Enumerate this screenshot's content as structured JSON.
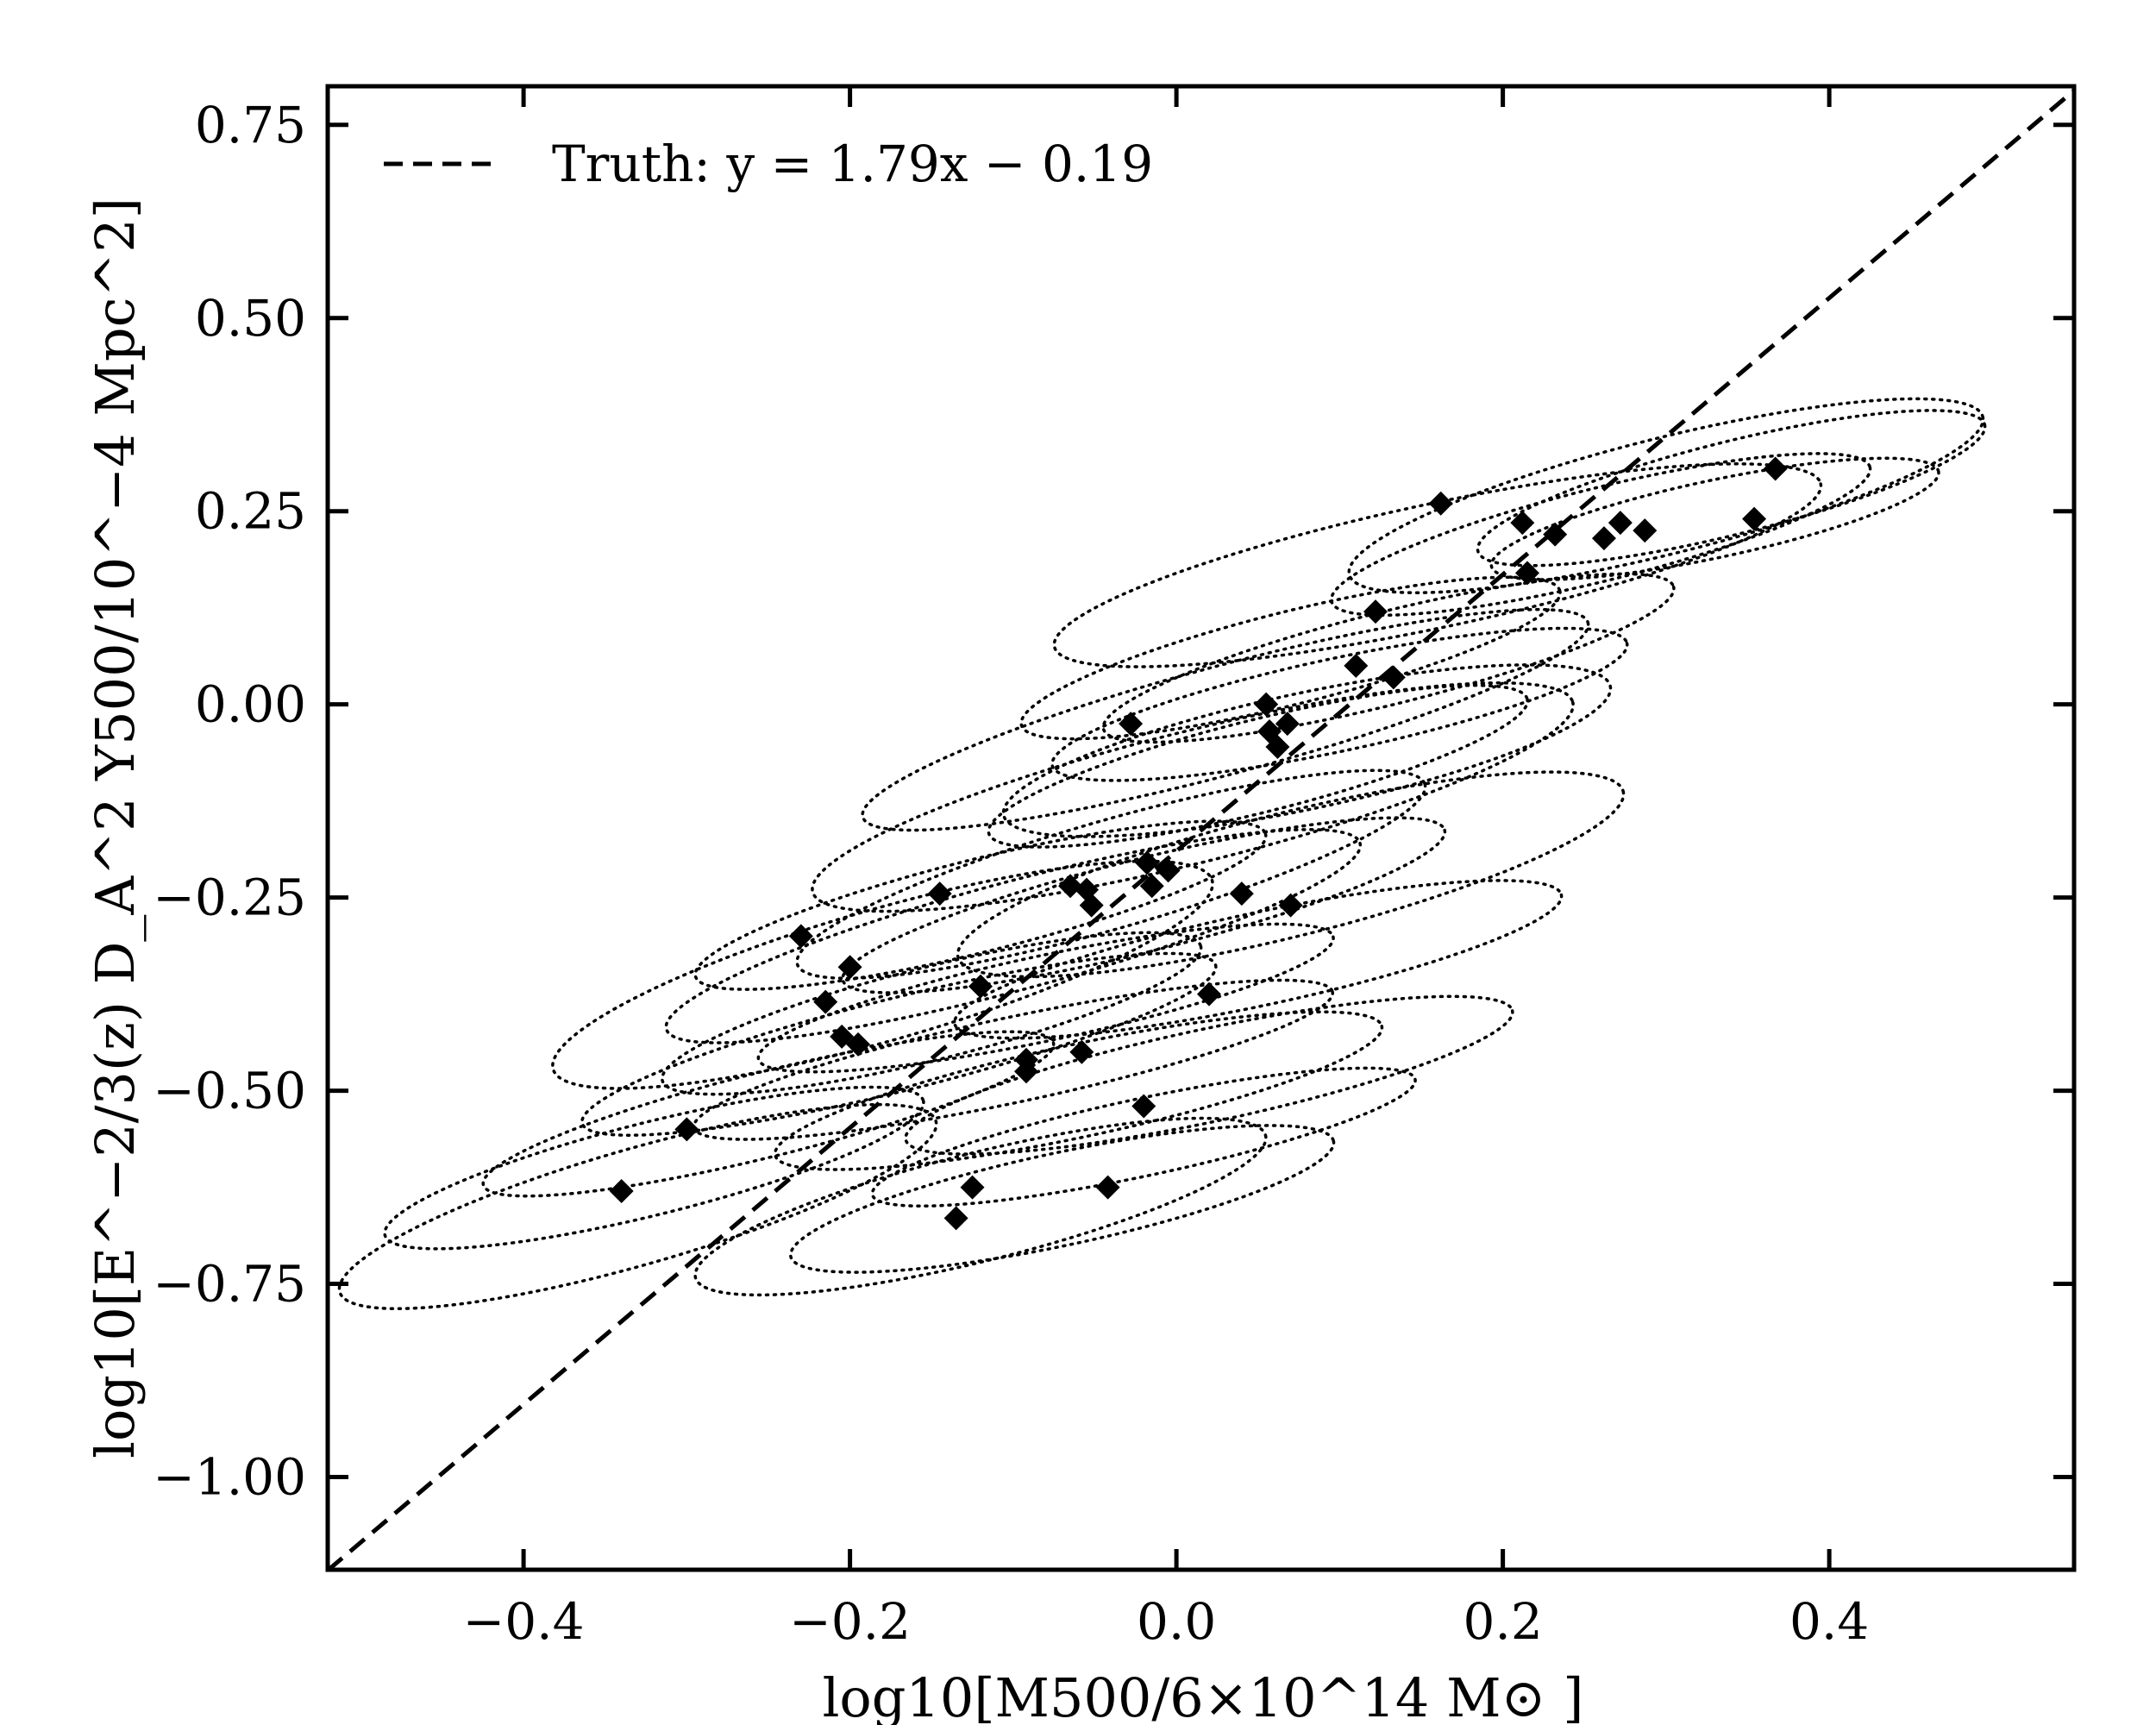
{
  "chart_data": {
    "type": "scatter",
    "xlabel": "log10[M500/6×10^14 M⊙ ]",
    "ylabel": "log10[E^−2/3(z) D_A^2 Y500/10^−4 Mpc^2]",
    "xlim": [
      -0.52,
      0.55
    ],
    "ylim": [
      -1.12,
      0.8
    ],
    "x_ticks": [
      -0.4,
      -0.2,
      0.0,
      0.2,
      0.4
    ],
    "x_tick_labels": [
      "−0.4",
      "−0.2",
      "0.0",
      "0.2",
      "0.4"
    ],
    "y_ticks": [
      0.75,
      0.5,
      0.25,
      0.0,
      -0.25,
      -0.5,
      -0.75,
      -1.0
    ],
    "y_tick_labels": [
      "0.75",
      "0.50",
      "0.25",
      "0.00",
      "−0.25",
      "−0.50",
      "−0.75",
      "−1.00"
    ],
    "legend": {
      "position": "top-left",
      "label": "Truth: y = 1.79x − 0.19"
    },
    "truth_line": {
      "slope": 1.79,
      "intercept": -0.19,
      "style": "dashed"
    },
    "grid": false,
    "colors": {
      "points": "#000000",
      "line": "#000000",
      "ellipses": "#000000"
    },
    "series": [
      {
        "marker": "diamond",
        "points": [
          [
            -0.34,
            -0.63
          ],
          [
            -0.3,
            -0.55
          ],
          [
            -0.23,
            -0.3
          ],
          [
            -0.215,
            -0.385
          ],
          [
            -0.2,
            -0.34
          ],
          [
            -0.205,
            -0.43
          ],
          [
            -0.195,
            -0.44
          ],
          [
            -0.145,
            -0.245
          ],
          [
            -0.135,
            -0.665
          ],
          [
            -0.125,
            -0.625
          ],
          [
            -0.12,
            -0.365
          ],
          [
            -0.092,
            -0.46
          ],
          [
            -0.092,
            -0.475
          ],
          [
            -0.065,
            -0.235
          ],
          [
            -0.058,
            -0.45
          ],
          [
            -0.055,
            -0.24
          ],
          [
            -0.052,
            -0.26
          ],
          [
            -0.042,
            -0.625
          ],
          [
            -0.02,
            -0.52
          ],
          [
            -0.018,
            -0.205
          ],
          [
            -0.015,
            -0.235
          ],
          [
            -0.005,
            -0.215
          ],
          [
            -0.028,
            -0.025
          ],
          [
            0.02,
            -0.375
          ],
          [
            0.04,
            -0.245
          ],
          [
            0.055,
            0.0
          ],
          [
            0.057,
            -0.035
          ],
          [
            0.062,
            -0.055
          ],
          [
            0.068,
            -0.025
          ],
          [
            0.07,
            -0.26
          ],
          [
            0.11,
            0.05
          ],
          [
            0.122,
            0.12
          ],
          [
            0.133,
            0.035
          ],
          [
            0.162,
            0.26
          ],
          [
            0.212,
            0.235
          ],
          [
            0.215,
            0.17
          ],
          [
            0.232,
            0.22
          ],
          [
            0.262,
            0.215
          ],
          [
            0.272,
            0.235
          ],
          [
            0.287,
            0.225
          ],
          [
            0.354,
            0.24
          ],
          [
            0.367,
            0.305
          ]
        ]
      }
    ],
    "ellipses": [
      {
        "cx": 0.01,
        "cy": -0.12,
        "rx": 0.24,
        "ry": 0.085,
        "angle": 14
      },
      {
        "cx": 0.08,
        "cy": -0.06,
        "rx": 0.19,
        "ry": 0.075,
        "angle": 12
      },
      {
        "cx": 0.03,
        "cy": -0.02,
        "rx": 0.23,
        "ry": 0.07,
        "angle": 15
      },
      {
        "cx": 0.1,
        "cy": 0.0,
        "rx": 0.18,
        "ry": 0.06,
        "angle": 12
      },
      {
        "cx": 0.13,
        "cy": 0.06,
        "rx": 0.18,
        "ry": 0.06,
        "angle": 14
      },
      {
        "cx": 0.16,
        "cy": 0.18,
        "rx": 0.24,
        "ry": 0.08,
        "angle": 12
      },
      {
        "cx": 0.3,
        "cy": 0.27,
        "rx": 0.2,
        "ry": 0.075,
        "angle": 14
      },
      {
        "cx": 0.26,
        "cy": 0.22,
        "rx": 0.17,
        "ry": 0.06,
        "angle": 14
      },
      {
        "cx": 0.33,
        "cy": 0.24,
        "rx": 0.14,
        "ry": 0.05,
        "angle": 12
      },
      {
        "cx": 0.34,
        "cy": 0.28,
        "rx": 0.16,
        "ry": 0.06,
        "angle": 14
      },
      {
        "cx": -0.04,
        "cy": -0.22,
        "rx": 0.2,
        "ry": 0.07,
        "angle": 16
      },
      {
        "cx": 0.07,
        "cy": -0.22,
        "rx": 0.21,
        "ry": 0.08,
        "angle": 14
      },
      {
        "cx": -0.02,
        "cy": -0.26,
        "rx": 0.19,
        "ry": 0.06,
        "angle": 14
      },
      {
        "cx": -0.1,
        "cy": -0.3,
        "rx": 0.22,
        "ry": 0.07,
        "angle": 15
      },
      {
        "cx": -0.12,
        "cy": -0.26,
        "rx": 0.18,
        "ry": 0.06,
        "angle": 14
      },
      {
        "cx": -0.18,
        "cy": -0.35,
        "rx": 0.21,
        "ry": 0.085,
        "angle": 16
      },
      {
        "cx": -0.15,
        "cy": -0.4,
        "rx": 0.17,
        "ry": 0.06,
        "angle": 14
      },
      {
        "cx": -0.17,
        "cy": -0.44,
        "rx": 0.2,
        "ry": 0.06,
        "angle": 14
      },
      {
        "cx": -0.08,
        "cy": -0.38,
        "rx": 0.18,
        "ry": 0.055,
        "angle": 12
      },
      {
        "cx": -0.1,
        "cy": -0.46,
        "rx": 0.2,
        "ry": 0.055,
        "angle": 12
      },
      {
        "cx": 0.05,
        "cy": -0.33,
        "rx": 0.19,
        "ry": 0.06,
        "angle": 12
      },
      {
        "cx": 0.02,
        "cy": -0.48,
        "rx": 0.19,
        "ry": 0.06,
        "angle": 12
      },
      {
        "cx": -0.06,
        "cy": -0.5,
        "rx": 0.19,
        "ry": 0.06,
        "angle": 12
      },
      {
        "cx": -0.02,
        "cy": -0.56,
        "rx": 0.17,
        "ry": 0.05,
        "angle": 12
      },
      {
        "cx": -0.25,
        "cy": -0.53,
        "rx": 0.18,
        "ry": 0.055,
        "angle": 14
      },
      {
        "cx": -0.32,
        "cy": -0.6,
        "rx": 0.17,
        "ry": 0.06,
        "angle": 14
      },
      {
        "cx": -0.33,
        "cy": -0.65,
        "rx": 0.19,
        "ry": 0.075,
        "angle": 16
      },
      {
        "cx": -0.12,
        "cy": -0.65,
        "rx": 0.18,
        "ry": 0.07,
        "angle": 14
      },
      {
        "cx": -0.07,
        "cy": -0.64,
        "rx": 0.17,
        "ry": 0.06,
        "angle": 12
      },
      {
        "cx": 0.07,
        "cy": 0.06,
        "rx": 0.17,
        "ry": 0.06,
        "angle": 14
      },
      {
        "cx": 0.05,
        "cy": -0.08,
        "rx": 0.17,
        "ry": 0.06,
        "angle": 14
      }
    ]
  }
}
